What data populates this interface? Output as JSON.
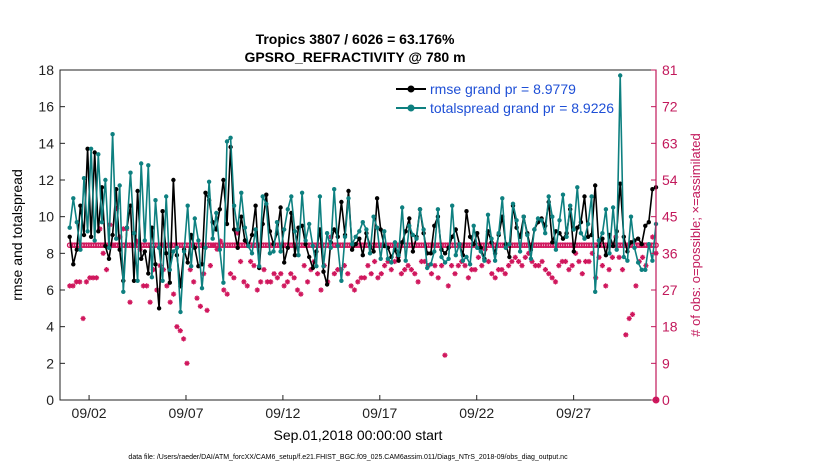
{
  "chart_data": {
    "type": "line",
    "title": "Tropics 3807 / 6026 = 63.176%",
    "subtitle": "GPSRO_REFRACTIVITY @ 780 m",
    "xlabel": "Sep.01,2018 00:00:00 start",
    "ylabel": "rmse and totalspread",
    "ylabel_right": "# of obs: o=possible; ×=assimilated",
    "footer": "data file: /Users/raeder/DAI/ATM_forcXX/CAM6_setup/f.e21.FHIST_BGC.f09_025.CAM6assim.011/Diags_NTrS_2018-09/obs_diag_output.nc",
    "xlim": [
      0.5,
      31.25
    ],
    "ylim": [
      0,
      18
    ],
    "ylim_right": [
      0,
      81
    ],
    "x_tick_values": [
      2,
      7,
      12,
      17,
      22,
      27
    ],
    "x_tick_labels": [
      "09/02",
      "09/07",
      "09/12",
      "09/17",
      "09/22",
      "09/27"
    ],
    "y_ticks": [
      0,
      2,
      4,
      6,
      8,
      10,
      12,
      14,
      16,
      18
    ],
    "y_ticks_right": [
      0,
      9,
      18,
      27,
      36,
      45,
      54,
      63,
      72,
      81
    ],
    "legend_location": "top-right",
    "colors": {
      "rmse": "#000000",
      "spread": "#0e8080",
      "obs": "#d0175d",
      "legend_text": "#1e4fd6",
      "right_axis": "#c2185b"
    },
    "series": [
      {
        "name": "rmse",
        "legend": "rmse grand pr = 8.9779",
        "values": [
          8.9,
          7.4,
          8.2,
          10.6,
          9.0,
          13.7,
          8.9,
          13.5,
          9.2,
          11.6,
          8.4,
          7.7,
          9.0,
          11.5,
          8.2,
          6.5,
          9.4,
          10.6,
          6.5,
          11.4,
          7.7,
          8.1,
          6.9,
          9.4,
          7.4,
          5.0,
          10.3,
          8.0,
          6.4,
          12.0,
          7.9,
          6.2,
          8.2,
          7.5,
          9.0,
          8.3,
          7.3,
          7.4,
          11.3,
          10.9,
          9.7,
          9.3,
          10.4,
          12.0,
          9.6,
          13.8,
          9.3,
          8.3,
          10.0,
          8.7,
          8.4,
          9.0,
          10.6,
          7.2,
          9.6,
          11.2,
          9.2,
          8.5,
          9.1,
          10.5,
          7.5,
          8.3,
          10.2,
          7.9,
          9.4,
          9.5,
          8.5,
          7.8,
          7.2,
          8.1,
          9.3,
          7.0,
          6.3,
          8.6,
          9.3,
          8.9,
          10.8,
          9.0,
          11.4,
          8.2,
          8.5,
          8.8,
          7.9,
          9.1,
          8.4,
          8.1,
          11.0,
          9.3,
          8.4,
          8.3,
          7.8,
          8.2,
          7.6,
          8.6,
          9.2,
          9.9,
          8.1,
          8.9,
          10.4,
          9.1,
          8.0,
          8.0,
          9.5,
          10.0,
          8.2,
          8.0,
          8.3,
          8.9,
          9.3,
          8.5,
          7.9,
          10.3,
          8.9,
          8.5,
          9.1,
          8.3,
          7.7,
          9.2,
          8.6,
          8.0,
          9.0,
          10.0,
          8.5,
          7.8,
          10.6,
          9.4,
          8.9,
          10.0,
          9.1,
          8.2,
          9.3,
          9.7,
          9.9,
          9.5,
          10.8,
          8.6,
          9.2,
          9.1,
          8.8,
          9.1,
          10.4,
          8.1,
          9.4,
          9.7,
          11.1,
          8.9,
          9.0,
          11.7,
          8.4,
          8.8,
          7.9,
          9.0,
          8.4,
          9.2,
          11.8,
          8.9,
          8.1,
          8.6,
          8.7,
          8.8,
          8.5,
          9.5,
          9.7,
          11.5,
          11.6
        ]
      },
      {
        "name": "totalspread",
        "legend": "totalspread grand pr = 8.9226",
        "values": [
          9.4,
          11.0,
          9.7,
          8.2,
          12.1,
          9.2,
          13.7,
          8.7,
          13.4,
          9.7,
          12.0,
          8.3,
          14.5,
          8.8,
          11.7,
          5.9,
          9.4,
          12.4,
          9.1,
          6.5,
          12.9,
          8.7,
          12.8,
          6.7,
          10.9,
          8.3,
          6.5,
          11.1,
          7.1,
          8.1,
          8.3,
          4.8,
          8.1,
          10.6,
          7.3,
          9.9,
          8.7,
          6.1,
          8.3,
          11.9,
          8.8,
          10.2,
          8.2,
          6.4,
          14.1,
          14.3,
          10.6,
          9.3,
          11.3,
          9.4,
          8.4,
          8.0,
          9.3,
          7.3,
          11.1,
          10.7,
          8.0,
          8.1,
          9.7,
          8.1,
          9.3,
          10.4,
          11.1,
          9.2,
          7.9,
          11.3,
          8.7,
          9.6,
          8.4,
          7.3,
          11.1,
          7.3,
          9.1,
          8.3,
          11.5,
          8.4,
          6.5,
          8.9,
          11.0,
          8.5,
          8.9,
          9.2,
          9.7,
          9.3,
          8.0,
          10.0,
          9.4,
          7.7,
          9.2,
          7.7,
          7.5,
          8.6,
          7.9,
          10.5,
          7.6,
          9.5,
          9.0,
          8.8,
          10.4,
          9.3,
          7.2,
          7.4,
          8.1,
          10.4,
          7.8,
          7.5,
          7.7,
          10.6,
          7.9,
          8.5,
          7.6,
          7.8,
          7.4,
          9.5,
          8.3,
          8.1,
          7.6,
          10.1,
          8.8,
          7.6,
          9.1,
          11.0,
          8.3,
          8.5,
          10.7,
          9.8,
          8.1,
          10.0,
          9.0,
          7.7,
          9.3,
          9.9,
          9.8,
          9.1,
          11.1,
          10.0,
          8.2,
          9.8,
          11.2,
          8.9,
          10.6,
          9.3,
          11.6,
          9.1,
          8.8,
          9.6,
          11.1,
          5.9,
          8.7,
          9.1,
          10.4,
          8.0,
          10.5,
          8.2,
          17.7,
          7.8,
          7.6,
          10.0,
          8.3,
          7.5,
          7.1,
          7.1,
          8.5,
          7.6,
          9.6
        ]
      }
    ],
    "obs_possible": [
      38,
      38,
      38,
      38,
      38,
      38,
      38,
      38,
      38,
      38,
      38,
      38,
      38,
      38,
      38,
      38,
      38,
      38,
      38,
      38,
      38,
      38,
      38,
      38,
      38,
      38,
      38,
      38,
      38,
      38,
      38,
      38,
      38,
      38,
      38,
      38,
      38,
      38,
      38,
      38,
      38,
      38,
      38,
      38,
      38,
      38,
      38,
      38,
      38,
      38,
      38,
      38,
      38,
      38,
      38,
      38,
      38,
      38,
      38,
      38,
      38,
      38,
      38,
      38,
      38,
      38,
      38,
      38,
      38,
      38,
      38,
      38,
      38,
      38,
      38,
      38,
      38,
      38,
      38,
      38,
      38,
      38,
      38,
      38,
      38,
      38,
      38,
      38,
      38,
      38,
      38,
      38,
      38,
      38,
      38,
      38,
      38,
      38,
      38,
      38,
      38,
      38,
      38,
      38,
      38,
      38,
      38,
      38,
      38,
      38,
      38,
      38,
      38,
      38,
      38,
      38,
      38,
      38,
      38,
      38,
      38,
      38,
      38,
      38,
      38,
      38,
      38,
      38,
      38,
      38,
      38,
      38,
      38,
      38,
      38,
      38,
      38,
      38,
      38,
      38,
      38,
      38,
      38,
      38,
      38,
      38,
      38,
      38,
      38,
      38,
      38,
      38,
      38,
      38,
      38,
      38,
      38,
      38,
      38,
      38,
      38,
      38,
      38,
      38,
      38,
      38,
      38,
      38,
      38,
      38,
      38,
      38,
      38,
      38,
      38,
      38,
      38,
      38,
      38,
      38,
      38,
      38,
      38,
      38,
      38,
      38,
      38,
      38,
      38,
      38,
      38,
      38,
      38,
      38,
      38,
      38,
      38,
      38,
      38,
      38,
      38,
      38,
      38,
      38,
      38,
      38,
      38,
      38,
      38,
      38,
      38,
      38,
      38,
      38,
      38,
      38,
      38,
      38,
      38,
      38,
      38,
      38,
      38,
      38,
      38,
      38,
      38,
      38,
      38,
      38,
      38,
      38,
      38,
      38,
      38,
      38,
      38,
      38,
      38,
      38,
      38,
      38,
      38,
      38,
      38,
      38
    ],
    "obs_assimilated": [
      28,
      28,
      29,
      29,
      20,
      29,
      30,
      30,
      30,
      42,
      36,
      32,
      43,
      38,
      47,
      40,
      42,
      42,
      24,
      38,
      39,
      37,
      28,
      28,
      24,
      32,
      27,
      33,
      32,
      28,
      24,
      26,
      18,
      17,
      15,
      9,
      32,
      29,
      25,
      23,
      31,
      22,
      33,
      38,
      37,
      39,
      27,
      26,
      31,
      30,
      41,
      34,
      29,
      28,
      34,
      33,
      27,
      29,
      32,
      29,
      29,
      31,
      30,
      31,
      28,
      29,
      31,
      30,
      27,
      26,
      33,
      29,
      32,
      34,
      31,
      27,
      33,
      29,
      40,
      31,
      32,
      32,
      33,
      31,
      28,
      27,
      29,
      30,
      30,
      33,
      31,
      34,
      30,
      31,
      33,
      34,
      32,
      34,
      35,
      31,
      32,
      33,
      32,
      31,
      29,
      34,
      34,
      33,
      31,
      33,
      30,
      33,
      11,
      28,
      33,
      31,
      33,
      34,
      33,
      30,
      32,
      32,
      35,
      33,
      37,
      34,
      31,
      30,
      32,
      32,
      31,
      33,
      34,
      35,
      34,
      33,
      35,
      36,
      34,
      33,
      33,
      34,
      32,
      31,
      30,
      29,
      33,
      34,
      34,
      32,
      33,
      36,
      34,
      31,
      34,
      34,
      36,
      30,
      35,
      33,
      28,
      32,
      35,
      40,
      35,
      32,
      16,
      20,
      21,
      28,
      34,
      35,
      33,
      38,
      40,
      36
    ]
  }
}
